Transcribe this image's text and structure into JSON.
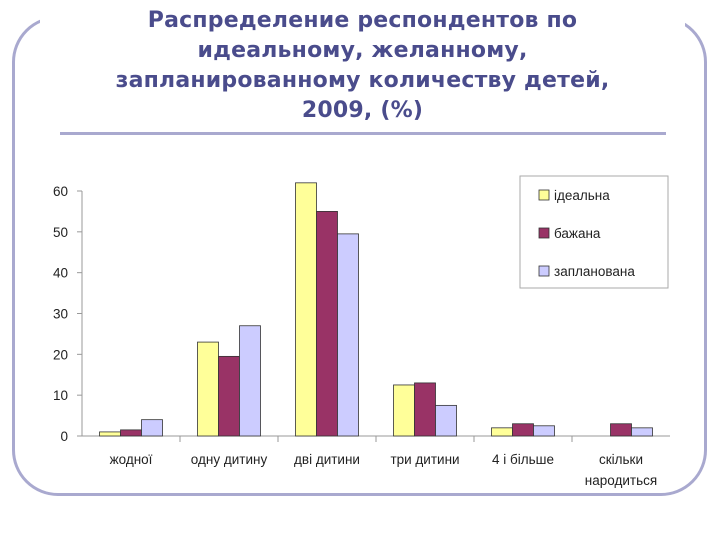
{
  "slide": {
    "title_lines": [
      "Распределение  респондентов по",
      "идеальному, желанному,",
      "запланированному количеству детей,",
      "2009, (%)"
    ]
  },
  "chart_data": {
    "type": "bar",
    "categories": [
      [
        "жодної"
      ],
      [
        "одну дитину"
      ],
      [
        "дві дитини"
      ],
      [
        "три дитини"
      ],
      [
        "4 і більше"
      ],
      [
        "скільки",
        "народиться"
      ]
    ],
    "series": [
      {
        "name": "ідеальна",
        "color": "#ffff99",
        "values": [
          1,
          23,
          62,
          12.5,
          2,
          null
        ]
      },
      {
        "name": "бажана",
        "color": "#993366",
        "values": [
          1.5,
          19.5,
          55,
          13,
          3,
          3
        ]
      },
      {
        "name": "запланована",
        "color": "#ccccff",
        "values": [
          4,
          27,
          49.5,
          7.5,
          2.5,
          2
        ]
      }
    ],
    "ylim": [
      0,
      60
    ],
    "yticks": [
      0,
      10,
      20,
      30,
      40,
      50,
      60
    ],
    "legend_position": "top-right",
    "grid": false
  }
}
